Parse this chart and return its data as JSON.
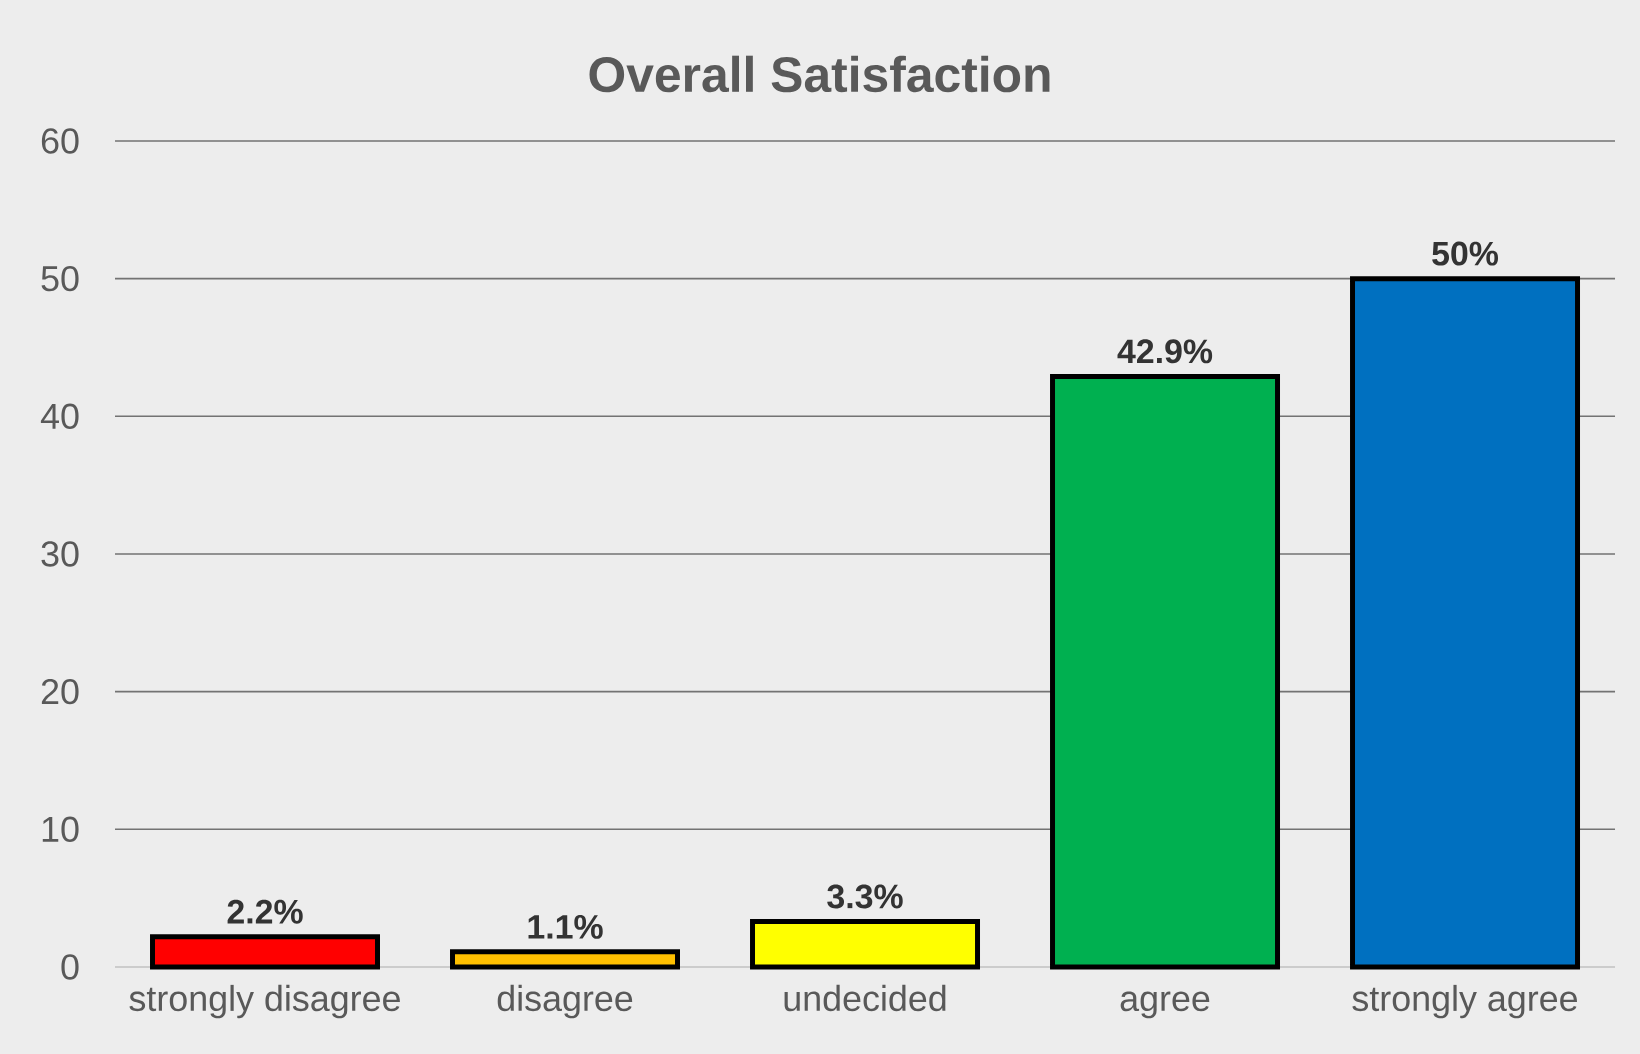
{
  "chart_data": {
    "type": "bar",
    "title": "Overall Satisfaction",
    "categories": [
      "strongly disagree",
      "disagree",
      "undecided",
      "agree",
      "strongly agree"
    ],
    "values": [
      2.2,
      1.1,
      3.3,
      42.9,
      50
    ],
    "colors": [
      "#ff0000",
      "#ffc000",
      "#ffff00",
      "#00b050",
      "#0070c0"
    ],
    "value_labels": [
      "2.2%",
      "1.1%",
      "3.3%",
      "42.9%",
      "50%"
    ],
    "ylim": [
      0,
      60
    ],
    "yticks": [
      0,
      10,
      20,
      30,
      40,
      50,
      60
    ],
    "grid": "y"
  }
}
